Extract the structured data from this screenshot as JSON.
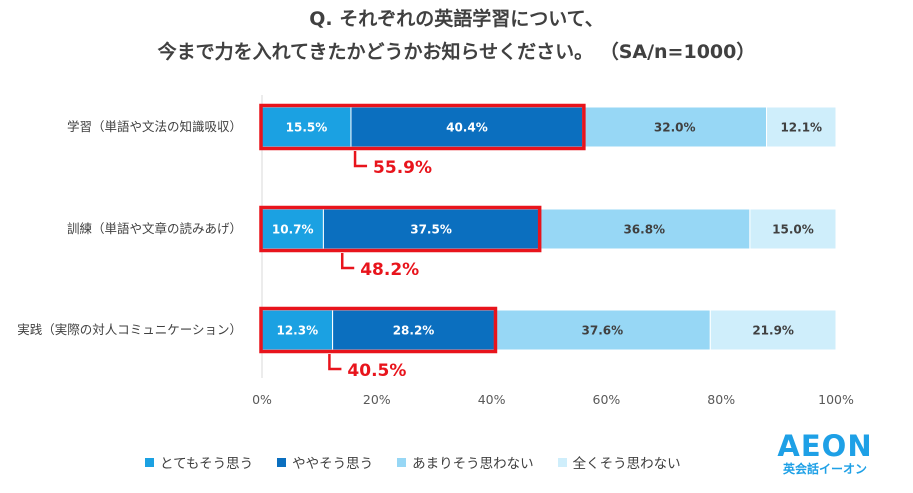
{
  "title": {
    "line1": "Q. それぞれの英語学習について、",
    "line2": "今まで力を入れてきたかどうかお知らせください。 （SA/n=1000）"
  },
  "chart_data": {
    "type": "bar",
    "orientation": "horizontal-stacked-100",
    "categories": [
      "学習（単語や文法の知識吸収）",
      "訓練（単語や文章の読みあげ）",
      "実践（実際の対人コミュニケーション）"
    ],
    "series": [
      {
        "name": "とてもそう思う",
        "values": [
          15.5,
          10.7,
          12.3
        ],
        "color": "#1ba1e2",
        "label_color": "#ffffff"
      },
      {
        "name": "ややそう思う",
        "values": [
          40.4,
          37.5,
          28.2
        ],
        "color": "#0b6fbf",
        "label_color": "#ffffff"
      },
      {
        "name": "あまりそう思わない",
        "values": [
          32.0,
          36.8,
          37.6
        ],
        "color": "#97d7f5",
        "label_color": "#404040"
      },
      {
        "name": "全くそう思わない",
        "values": [
          12.1,
          15.0,
          21.9
        ],
        "color": "#cfeefb",
        "label_color": "#404040"
      }
    ],
    "value_suffix": "%",
    "highlight_totals": [
      "55.9%",
      "48.2%",
      "40.5%"
    ],
    "highlight_color": "#e8141c",
    "xlim": [
      0,
      100
    ],
    "xticks": [
      "0%",
      "20%",
      "40%",
      "60%",
      "80%",
      "100%"
    ],
    "legend_position": "bottom"
  },
  "logo": {
    "main": "AEON",
    "sub": "英会話イーオン"
  }
}
